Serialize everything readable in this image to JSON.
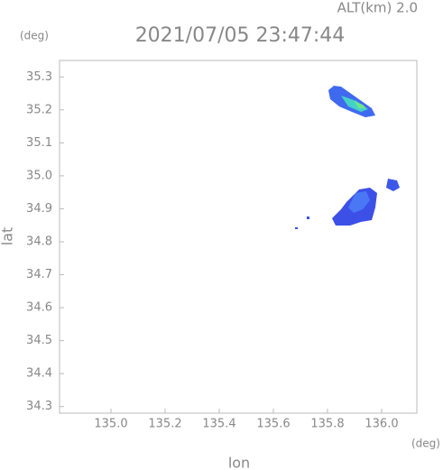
{
  "chart_data": {
    "type": "map",
    "title": "2021/07/05 23:47:44",
    "subtitle": "ALT(km) 2.0",
    "x_unit": "(deg)",
    "y_unit": "(deg)",
    "xlabel": "lon",
    "ylabel": "lat",
    "xlim": [
      134.81,
      136.13
    ],
    "ylim": [
      34.28,
      35.35
    ],
    "xticks": [
      {
        "value": 135.0,
        "label": "135.0"
      },
      135.2,
      135.4,
      135.6,
      135.8,
      {
        "value": 136.0,
        "label": "136.0"
      }
    ],
    "yticks": [
      34.3,
      34.4,
      34.5,
      34.6,
      34.7,
      34.8,
      34.9,
      {
        "value": 35.0,
        "label": "35.0"
      },
      35.1,
      35.2,
      35.3
    ]
  }
}
